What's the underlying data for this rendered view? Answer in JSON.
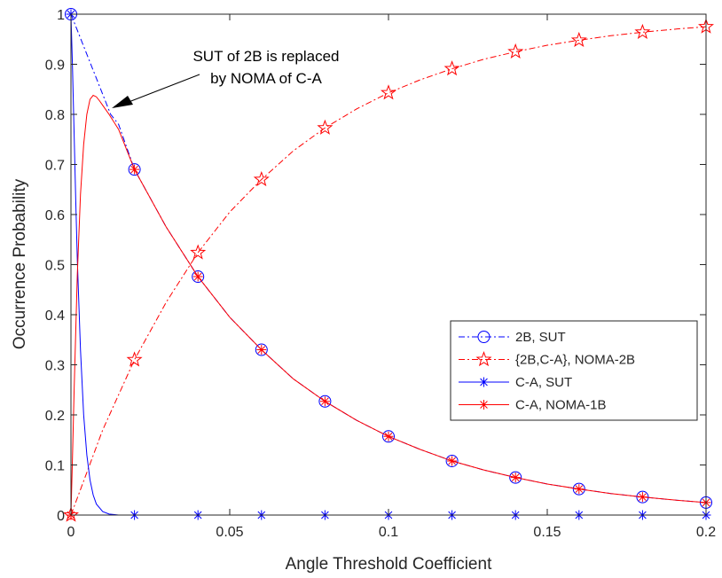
{
  "chart_data": {
    "type": "line",
    "title": "",
    "xlabel": "Angle Threshold Coefficient",
    "ylabel": "Occurrence Probability",
    "xlim": [
      0,
      0.2
    ],
    "ylim": [
      0,
      1
    ],
    "xticks": [
      0,
      0.05,
      0.1,
      0.15,
      0.2
    ],
    "xtick_labels": [
      "0",
      "0.05",
      "0.1",
      "0.15",
      "0.2"
    ],
    "yticks": [
      0,
      0.1,
      0.2,
      0.3,
      0.4,
      0.5,
      0.6,
      0.7,
      0.8,
      0.9,
      1
    ],
    "ytick_labels": [
      "0",
      "0.1",
      "0.2",
      "0.3",
      "0.4",
      "0.5",
      "0.6",
      "0.7",
      "0.8",
      "0.9",
      "1"
    ],
    "grid": false,
    "legend_position": "right",
    "annotation": {
      "lines": [
        "SUT of 2B is replaced",
        "by NOMA of C-A"
      ],
      "arrow_target": [
        0.0125,
        0.8
      ]
    },
    "series": [
      {
        "name": "2B, SUT",
        "color": "#0000ff",
        "linestyle": "dashdot",
        "marker": "circle",
        "x": [
          0,
          0.005,
          0.01,
          0.0125,
          0.015,
          0.02,
          0.03,
          0.04,
          0.05,
          0.06,
          0.07,
          0.08,
          0.09,
          0.1,
          0.11,
          0.12,
          0.13,
          0.14,
          0.15,
          0.16,
          0.17,
          0.18,
          0.19,
          0.2
        ],
        "values": [
          1.0,
          0.92,
          0.84,
          0.8,
          0.78,
          0.69,
          0.575,
          0.476,
          0.395,
          0.33,
          0.272,
          0.227,
          0.189,
          0.157,
          0.131,
          0.108,
          0.09,
          0.075,
          0.062,
          0.052,
          0.043,
          0.036,
          0.03,
          0.025
        ],
        "marker_x": [
          0,
          0.02,
          0.04,
          0.06,
          0.08,
          0.1,
          0.12,
          0.14,
          0.16,
          0.18,
          0.2
        ]
      },
      {
        "name": "{2B,C-A}, NOMA-2B",
        "color": "#ff0000",
        "linestyle": "dashdot",
        "marker": "pentagram",
        "x": [
          0,
          0.01,
          0.02,
          0.03,
          0.04,
          0.05,
          0.06,
          0.07,
          0.08,
          0.09,
          0.1,
          0.11,
          0.12,
          0.13,
          0.14,
          0.15,
          0.16,
          0.17,
          0.18,
          0.19,
          0.2
        ],
        "values": [
          0,
          0.17,
          0.31,
          0.425,
          0.524,
          0.605,
          0.67,
          0.727,
          0.773,
          0.811,
          0.843,
          0.869,
          0.891,
          0.91,
          0.925,
          0.938,
          0.948,
          0.957,
          0.964,
          0.97,
          0.975
        ],
        "marker_x": [
          0,
          0.02,
          0.04,
          0.06,
          0.08,
          0.1,
          0.12,
          0.14,
          0.16,
          0.18,
          0.2
        ]
      },
      {
        "name": "C-A, SUT",
        "color": "#0000ff",
        "linestyle": "solid",
        "marker": "asterisk",
        "x": [
          0,
          0.0005,
          0.001,
          0.0015,
          0.002,
          0.003,
          0.004,
          0.005,
          0.006,
          0.007,
          0.008,
          0.01,
          0.012,
          0.015,
          0.02,
          0.2
        ],
        "values": [
          1.0,
          0.89,
          0.76,
          0.63,
          0.51,
          0.33,
          0.2,
          0.12,
          0.07,
          0.04,
          0.022,
          0.007,
          0.002,
          0.0,
          0.0,
          0.0
        ],
        "marker_x": [
          0,
          0.02,
          0.04,
          0.06,
          0.08,
          0.1,
          0.12,
          0.14,
          0.16,
          0.18,
          0.2
        ]
      },
      {
        "name": "C-A, NOMA-1B",
        "color": "#ff0000",
        "linestyle": "solid",
        "marker": "asterisk",
        "x": [
          0,
          0.0005,
          0.001,
          0.002,
          0.003,
          0.004,
          0.005,
          0.006,
          0.007,
          0.008,
          0.009,
          0.01,
          0.012,
          0.015,
          0.02,
          0.03,
          0.04,
          0.05,
          0.06,
          0.07,
          0.08,
          0.09,
          0.1,
          0.11,
          0.12,
          0.13,
          0.14,
          0.15,
          0.16,
          0.17,
          0.18,
          0.19,
          0.2
        ],
        "values": [
          0,
          0.12,
          0.25,
          0.48,
          0.64,
          0.74,
          0.8,
          0.83,
          0.838,
          0.835,
          0.827,
          0.818,
          0.8,
          0.77,
          0.69,
          0.575,
          0.476,
          0.395,
          0.33,
          0.272,
          0.227,
          0.189,
          0.157,
          0.131,
          0.108,
          0.09,
          0.075,
          0.062,
          0.052,
          0.043,
          0.036,
          0.03,
          0.025
        ],
        "marker_x": [
          0,
          0.02,
          0.04,
          0.06,
          0.08,
          0.1,
          0.12,
          0.14,
          0.16,
          0.18,
          0.2
        ]
      }
    ]
  }
}
